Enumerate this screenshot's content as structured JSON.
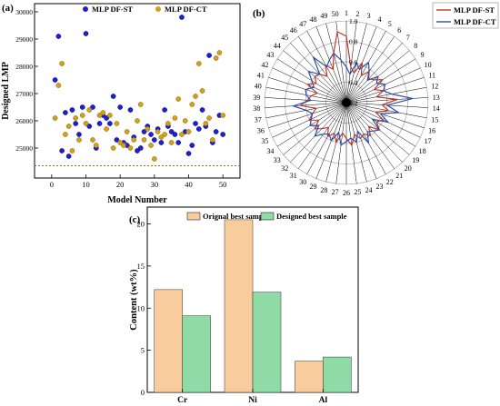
{
  "chart_data": [
    {
      "type": "scatter",
      "panel_label": "(a)",
      "xlabel": "Model Number",
      "ylabel": "Designed LMP",
      "xlim": [
        -5,
        55
      ],
      "ylim": [
        23900,
        30300
      ],
      "xticks": [
        0,
        10,
        20,
        30,
        40,
        50
      ],
      "yticks": [
        25000,
        26000,
        27000,
        28000,
        29000,
        30000
      ],
      "reference_line": 24350,
      "legend_position": "top",
      "series": [
        {
          "name": "MLP DF-ST",
          "color": "#1f1fd6",
          "x": [
            1,
            2,
            3,
            4,
            5,
            6,
            7,
            8,
            9,
            10,
            11,
            12,
            13,
            14,
            15,
            16,
            17,
            18,
            19,
            20,
            21,
            22,
            23,
            24,
            25,
            26,
            27,
            28,
            29,
            30,
            31,
            32,
            33,
            34,
            35,
            36,
            37,
            38,
            39,
            40,
            41,
            42,
            43,
            44,
            45,
            46,
            47,
            48,
            49,
            50
          ],
          "y": [
            27500,
            29100,
            24900,
            26300,
            24700,
            26400,
            25900,
            25500,
            26500,
            29200,
            25800,
            26500,
            25000,
            25900,
            26200,
            26100,
            25900,
            26900,
            25300,
            26500,
            25200,
            25100,
            26400,
            25400,
            24900,
            25000,
            25600,
            25800,
            25500,
            25300,
            25700,
            25200,
            26400,
            25800,
            25600,
            25500,
            25200,
            29800,
            25600,
            24800,
            25100,
            25900,
            25700,
            26400,
            25800,
            28400,
            25200,
            25600,
            26200,
            25500
          ]
        },
        {
          "name": "MLP DF-CT",
          "color": "#d4a017",
          "x": [
            1,
            2,
            3,
            4,
            5,
            6,
            7,
            8,
            9,
            10,
            11,
            12,
            13,
            14,
            15,
            16,
            17,
            18,
            19,
            20,
            21,
            22,
            23,
            24,
            25,
            26,
            27,
            28,
            29,
            30,
            31,
            32,
            33,
            34,
            35,
            36,
            37,
            38,
            39,
            40,
            41,
            42,
            43,
            44,
            45,
            46,
            47,
            48,
            49,
            50
          ],
          "y": [
            26100,
            27300,
            28100,
            25500,
            25800,
            24900,
            26100,
            25300,
            26200,
            25900,
            26400,
            25300,
            25100,
            26200,
            26300,
            25700,
            26200,
            25000,
            25900,
            25200,
            25100,
            25600,
            25000,
            25300,
            26000,
            26600,
            25300,
            25700,
            25100,
            24600,
            25600,
            25400,
            25500,
            25900,
            25200,
            26100,
            26800,
            25500,
            26000,
            25600,
            26600,
            26900,
            28100,
            27100,
            25900,
            26100,
            25300,
            28300,
            28500,
            26200
          ]
        }
      ]
    },
    {
      "type": "radar",
      "panel_label": "(b)",
      "categories": [
        "1",
        "2",
        "3",
        "4",
        "5",
        "6",
        "7",
        "8",
        "9",
        "10",
        "11",
        "12",
        "13",
        "14",
        "15",
        "16",
        "17",
        "18",
        "19",
        "20",
        "21",
        "22",
        "23",
        "24",
        "25",
        "26",
        "27",
        "28",
        "29",
        "30",
        "31",
        "32",
        "33",
        "34",
        "35",
        "36",
        "37",
        "38",
        "39",
        "40",
        "41",
        "42",
        "43",
        "44",
        "45",
        "46",
        "47",
        "48",
        "49",
        "50"
      ],
      "rlim": [
        0.2,
        1.0
      ],
      "rticks": [
        "0.2",
        "0.4",
        "0.6",
        "0.8",
        "1.0"
      ],
      "legend_position": "top-right",
      "series": [
        {
          "name": "MLP DF-ST",
          "color": "#c0392b",
          "values": [
            0.85,
            0.55,
            0.5,
            0.62,
            0.5,
            0.58,
            0.52,
            0.55,
            0.62,
            0.5,
            0.58,
            0.5,
            0.7,
            0.55,
            0.62,
            0.5,
            0.6,
            0.55,
            0.62,
            0.52,
            0.6,
            0.55,
            0.58,
            0.52,
            0.62,
            0.55,
            0.5,
            0.6,
            0.52,
            0.58,
            0.5,
            0.55,
            0.6,
            0.52,
            0.6,
            0.55,
            0.5,
            0.65,
            0.58,
            0.55,
            0.5,
            0.62,
            0.55,
            0.6,
            0.58,
            0.52,
            0.62,
            0.55,
            0.7,
            0.9
          ]
        },
        {
          "name": "MLP DF-CT",
          "color": "#2e4fa8",
          "values": [
            0.55,
            0.48,
            0.6,
            0.55,
            0.65,
            0.58,
            0.5,
            0.6,
            0.55,
            0.62,
            0.58,
            0.65,
            0.85,
            0.6,
            0.72,
            0.55,
            0.65,
            0.5,
            0.62,
            0.58,
            0.55,
            0.65,
            0.5,
            0.6,
            0.55,
            0.58,
            0.62,
            0.5,
            0.6,
            0.55,
            0.58,
            0.65,
            0.55,
            0.62,
            0.58,
            0.55,
            0.6,
            0.72,
            0.55,
            0.6,
            0.62,
            0.55,
            0.6,
            0.68,
            0.58,
            0.75,
            0.6,
            0.65,
            0.7,
            0.62
          ]
        }
      ]
    },
    {
      "type": "bar",
      "panel_label": "(c)",
      "categories": [
        "Cr",
        "Ni",
        "Al"
      ],
      "ylabel": "Content (wt%)",
      "ylim": [
        0,
        22
      ],
      "yticks": [
        0,
        5,
        10,
        15,
        20
      ],
      "legend_position": "top",
      "series": [
        {
          "name": "Orignal best sample",
          "color": "#f9cc9d",
          "values": [
            12.2,
            20.5,
            3.7
          ]
        },
        {
          "name": "Designed best sample",
          "color": "#8fdba6",
          "values": [
            9.1,
            11.9,
            4.2
          ]
        }
      ]
    }
  ]
}
